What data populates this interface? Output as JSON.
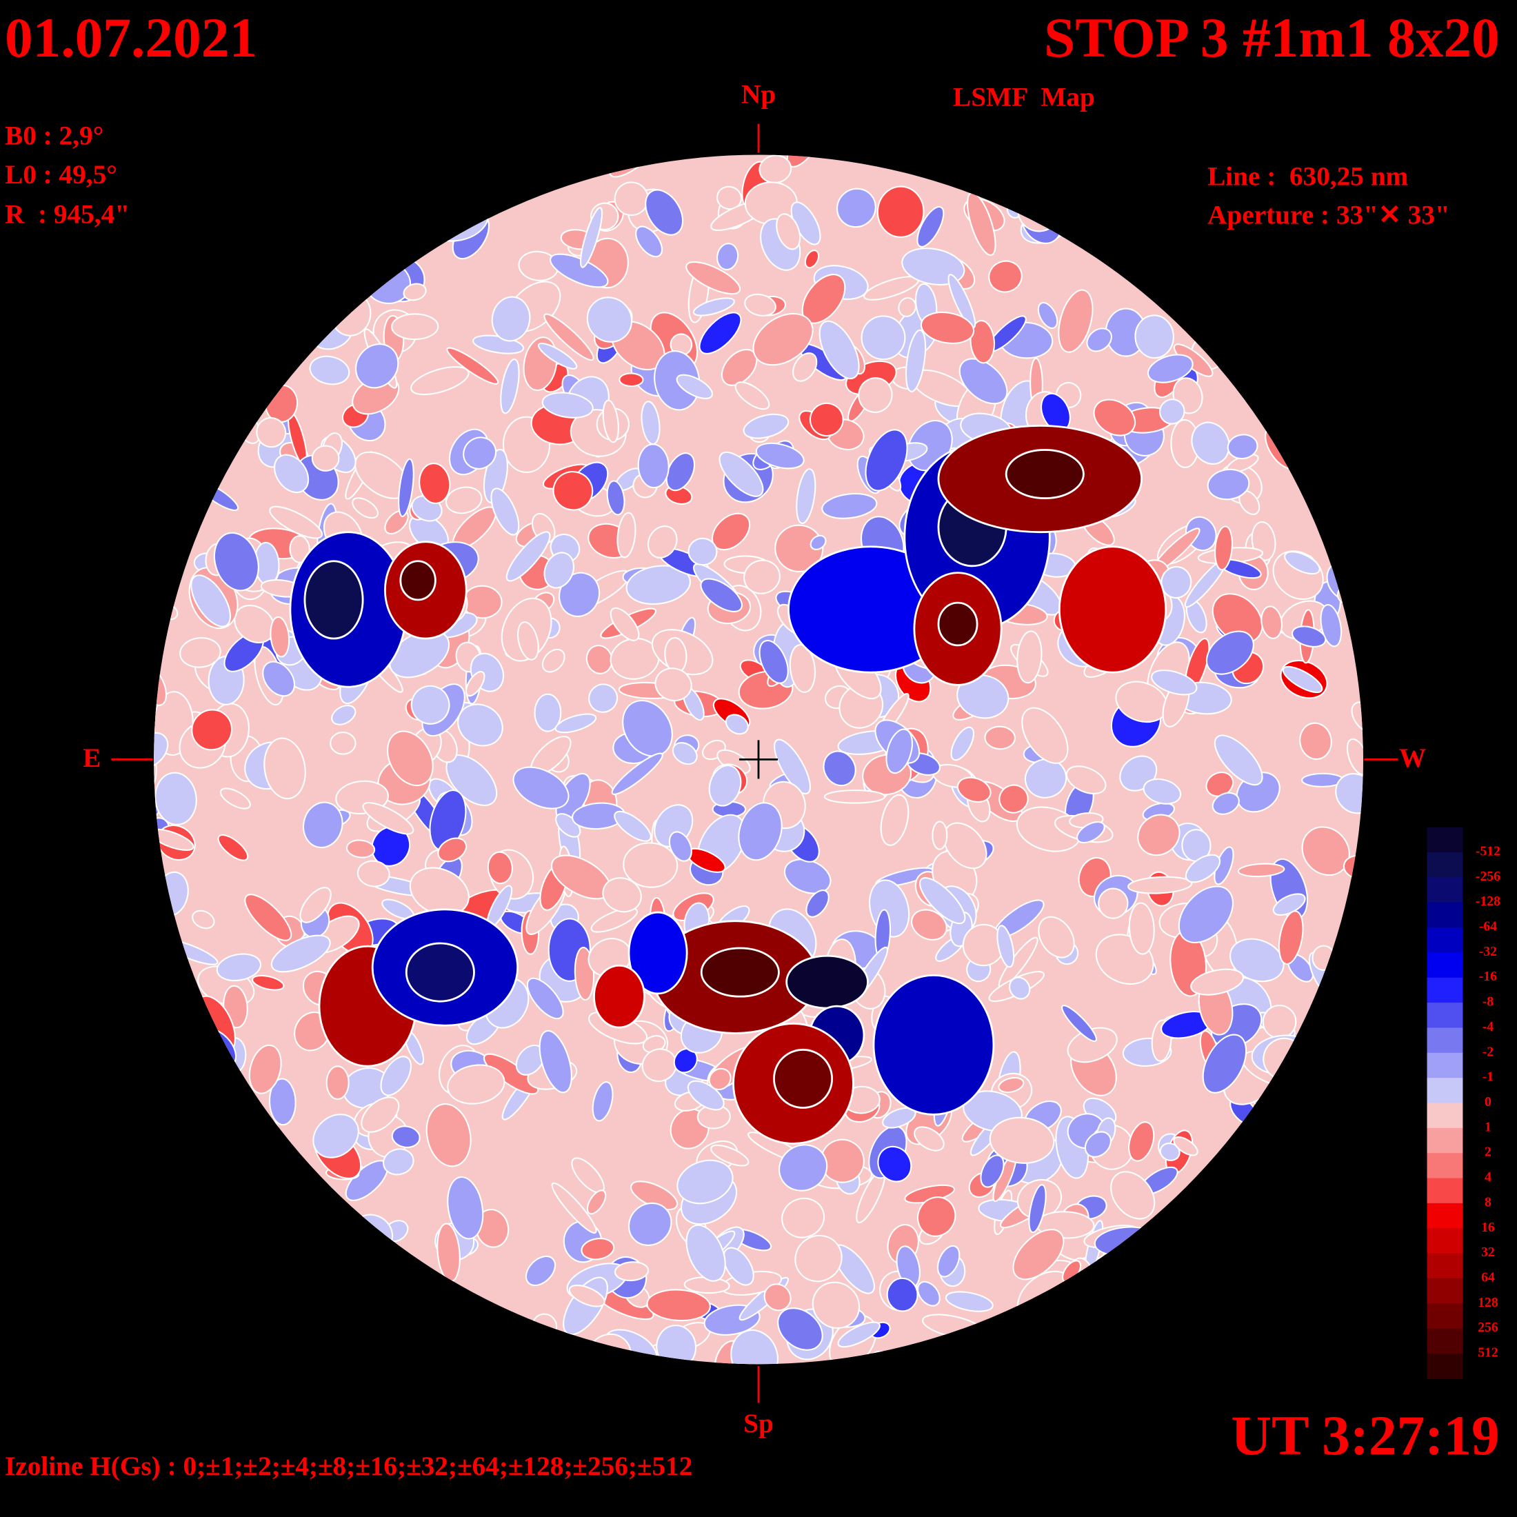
{
  "header": {
    "date": "01.07.2021",
    "title": "STOP 3 #1m1 8x20",
    "subtitle": "LSMF  Map"
  },
  "parameters": {
    "b0": "B0 : 2,9°",
    "l0": "L0 : 49,5°",
    "r": "R  : 945,4\""
  },
  "instrument": {
    "line": "Line :  630,25 nm",
    "aperture": "Aperture : 33\"✕ 33\""
  },
  "directions": {
    "north": "Np",
    "south": "Sp",
    "east": "E",
    "west": "W"
  },
  "time": "UT 3:27:19",
  "isolines": "Izoline H(Gs) : 0;±1;±2;±4;±8;±16;±32;±64;±128;±256;±512",
  "colorbar": {
    "labels": [
      -512,
      -256,
      -128,
      -64,
      -32,
      -16,
      -8,
      -4,
      -2,
      -1,
      0,
      1,
      2,
      4,
      8,
      16,
      32,
      64,
      128,
      256,
      512
    ],
    "colors": [
      "#0a0530",
      "#0c0c50",
      "#0a0a70",
      "#000090",
      "#0000c0",
      "#0000f0",
      "#2020ff",
      "#5050f0",
      "#7878f0",
      "#a0a0f8",
      "#c8c8f8",
      "#f8c8c8",
      "#f8a0a0",
      "#f87878",
      "#f84848",
      "#f00000",
      "#d00000",
      "#b00000",
      "#900000",
      "#700000",
      "#500000",
      "#300000"
    ]
  }
}
